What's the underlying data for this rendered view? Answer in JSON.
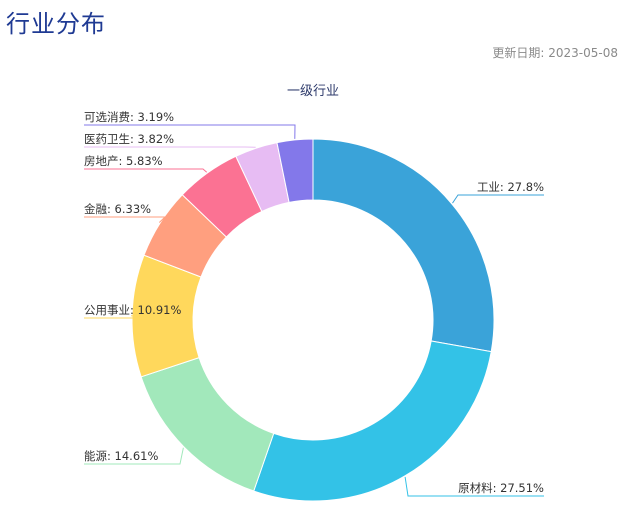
{
  "header": {
    "title": "行业分布",
    "update_date": "更新日期: 2023-05-08"
  },
  "chart_data": {
    "type": "pie",
    "donut": true,
    "title": "一级行业",
    "legend": "none",
    "start_angle_deg": 0,
    "direction": "clockwise",
    "slices": [
      {
        "name": "工业",
        "value": 27.8,
        "label": "工业: 27.8%",
        "color": "#3aa3d9"
      },
      {
        "name": "原材料",
        "value": 27.51,
        "label": "原材料: 27.51%",
        "color": "#33c2e7"
      },
      {
        "name": "能源",
        "value": 14.61,
        "label": "能源: 14.61%",
        "color": "#a2e8bb"
      },
      {
        "name": "公用事业",
        "value": 10.91,
        "label": "公用事业: 10.91%",
        "color": "#ffd85c"
      },
      {
        "name": "金融",
        "value": 6.33,
        "label": "金融: 6.33%",
        "color": "#ff9f7f"
      },
      {
        "name": "房地产",
        "value": 5.83,
        "label": "房地产: 5.83%",
        "color": "#fb7293"
      },
      {
        "name": "医药卫生",
        "value": 3.82,
        "label": "医药卫生: 3.82%",
        "color": "#e7bcf3"
      },
      {
        "name": "可选消费",
        "value": 3.19,
        "label": "可选消费: 3.19%",
        "color": "#8378ea"
      }
    ]
  }
}
